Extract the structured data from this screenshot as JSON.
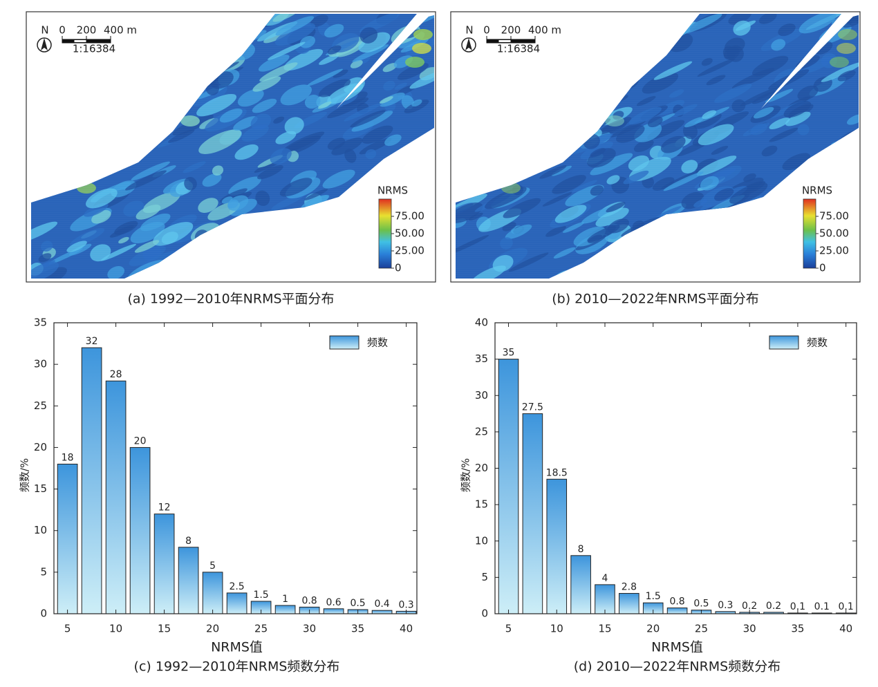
{
  "maps": [
    {
      "caption": "(a) 1992—2010年NRMS平面分布",
      "north": "N",
      "scale_ticks": [
        0,
        200,
        {
          "value": 400,
          "label": "400 m"
        }
      ],
      "scale_ratio": "1:16384",
      "colorbar": {
        "title": "NRMS",
        "lim": [
          0,
          100
        ],
        "ticks": [
          0,
          {
            "value": 25,
            "label": "25.00"
          },
          {
            "value": 50,
            "label": "50.00"
          },
          {
            "value": 75,
            "label": "75.00"
          }
        ]
      }
    },
    {
      "caption": "(b) 2010—2022年NRMS平面分布",
      "north": "N",
      "scale_ticks": [
        0,
        200,
        {
          "value": 400,
          "label": "400 m"
        }
      ],
      "scale_ratio": "1:16384",
      "colorbar": {
        "title": "NRMS",
        "lim": [
          0,
          100
        ],
        "ticks": [
          0,
          {
            "value": 25,
            "label": "25.00"
          },
          {
            "value": 50,
            "label": "50.00"
          },
          {
            "value": 75,
            "label": "75.00"
          }
        ]
      }
    }
  ],
  "chart_data": [
    {
      "type": "bar",
      "caption": "(c) 1992—2010年NRMS频数分布",
      "x_label": "NRMS值",
      "y_label": "频数/%",
      "x": [
        5,
        7.5,
        10,
        12.5,
        15,
        17.5,
        20,
        22.5,
        25,
        27.5,
        30,
        32.5,
        35,
        37.5,
        40
      ],
      "series": [
        {
          "name": "频数",
          "color": "#3d95dc",
          "values": [
            18,
            32,
            28,
            20,
            12,
            8,
            5,
            2.5,
            1.5,
            1,
            0.8,
            0.6,
            0.5,
            0.4,
            0.3
          ]
        }
      ],
      "xlim": [
        3.6,
        41.1
      ],
      "xticks": [
        5,
        10,
        15,
        20,
        25,
        30,
        35,
        40
      ],
      "ylim": [
        0,
        35
      ],
      "yticks": [
        0,
        5,
        10,
        15,
        20,
        25,
        30,
        35
      ],
      "legend": "upper right"
    },
    {
      "type": "bar",
      "caption": "(d) 2010—2022年NRMS频数分布",
      "x_label": "NRMS值",
      "y_label": "频数/%",
      "x": [
        5,
        7.5,
        10,
        12.5,
        15,
        17.5,
        20,
        22.5,
        25,
        27.5,
        30,
        32.5,
        35,
        37.5,
        40
      ],
      "series": [
        {
          "name": "频数",
          "color": "#3d95dc",
          "values": [
            35,
            27.5,
            18.5,
            8,
            4,
            2.8,
            1.5,
            0.8,
            0.5,
            0.3,
            0.2,
            0.2,
            0.1,
            0.1,
            0.1
          ]
        }
      ],
      "xlim": [
        3.6,
        41.1
      ],
      "xticks": [
        5,
        10,
        15,
        20,
        25,
        30,
        35,
        40
      ],
      "ylim": [
        0,
        40
      ],
      "yticks": [
        0,
        5,
        10,
        15,
        20,
        25,
        30,
        35,
        40
      ],
      "legend": "upper right"
    }
  ]
}
